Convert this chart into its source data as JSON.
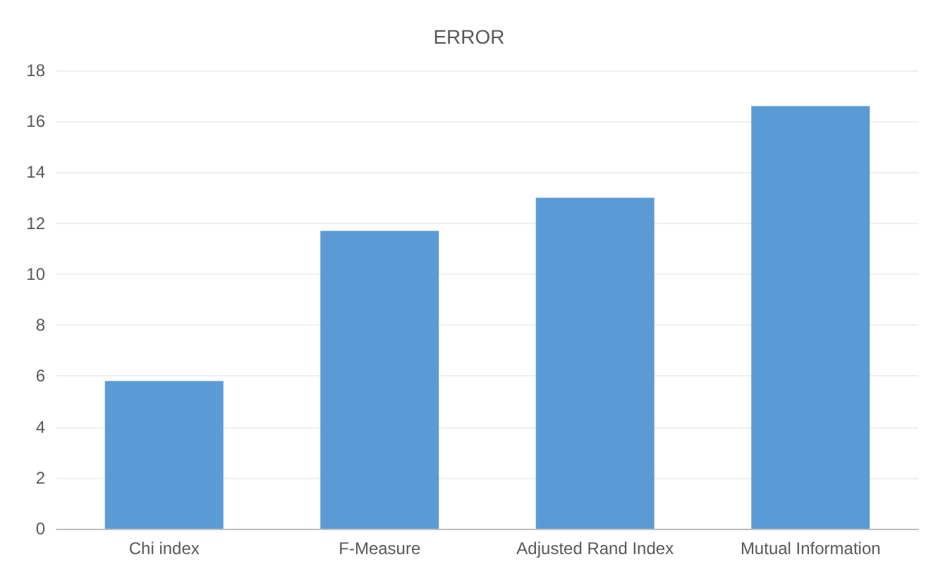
{
  "chart_data": {
    "type": "bar",
    "title": "ERROR",
    "categories": [
      "Chi index",
      "F-Measure",
      "Adjusted Rand Index",
      "Mutual Information"
    ],
    "values": [
      5.8,
      11.7,
      13.0,
      16.6
    ],
    "color": "#5b9bd5",
    "ylim": [
      0,
      18
    ],
    "yticks": [
      0,
      2,
      4,
      6,
      8,
      10,
      12,
      14,
      16,
      18
    ],
    "grid": "y"
  }
}
